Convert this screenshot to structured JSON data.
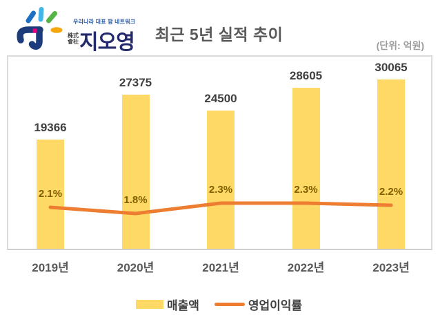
{
  "logo": {
    "slogan": "우리나라 대표 팜 네트워크",
    "prefix_line1": "株式",
    "prefix_line2": "會社",
    "company_name": "지오영"
  },
  "header": {
    "title": "최근 5년 실적 추이",
    "unit_label": "(단위: 억원)"
  },
  "chart_data": {
    "type": "bar",
    "title": "최근 5년 실적 추이",
    "unit_label": "(단위: 억원)",
    "categories": [
      "2019년",
      "2020년",
      "2021년",
      "2022년",
      "2023년"
    ],
    "series": [
      {
        "name": "매출액",
        "type": "bar",
        "color": "#FFD966",
        "values": [
          19366,
          27375,
          24500,
          28605,
          30065
        ],
        "data_labels": [
          "19366",
          "27375",
          "24500",
          "28605",
          "30065"
        ]
      },
      {
        "name": "영업이익률",
        "type": "line",
        "color": "#ED7D31",
        "values_percent": [
          2.1,
          1.8,
          2.3,
          2.3,
          2.2
        ],
        "data_labels": [
          "2.1%",
          "1.8%",
          "2.3%",
          "2.3%",
          "2.2%"
        ]
      }
    ],
    "ylim": [
      0,
      34600
    ],
    "grid": false,
    "legend_position": "bottom"
  },
  "colors": {
    "bar": "#FFD966",
    "line": "#ED7D31",
    "value_label": "#404040",
    "pct_label": "#7F6000",
    "axis_label": "#595959",
    "title": "#595959",
    "frame": "#D9D9D9"
  }
}
